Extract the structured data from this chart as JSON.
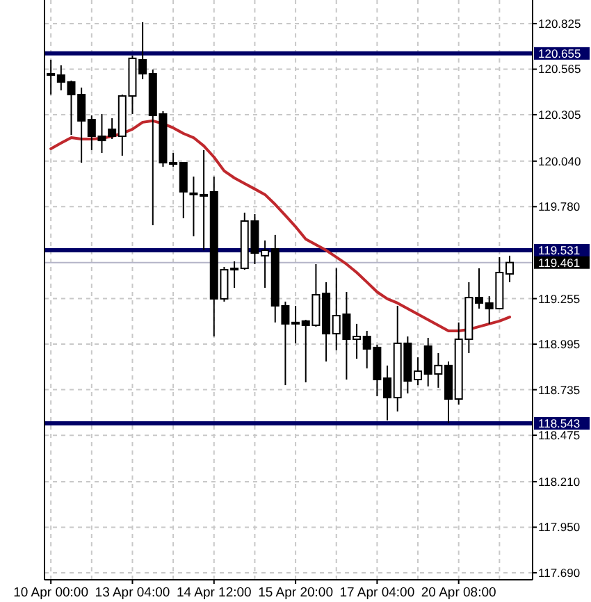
{
  "chart_data": {
    "type": "candlestick",
    "categories": [
      "10 Apr 00:00",
      null,
      null,
      null,
      null,
      null,
      null,
      null,
      "13 Apr 04:00",
      null,
      null,
      null,
      null,
      null,
      null,
      null,
      "14 Apr 12:00",
      null,
      null,
      null,
      null,
      null,
      null,
      null,
      "15 Apr 20:00",
      null,
      null,
      null,
      null,
      null,
      null,
      null,
      "17 Apr 04:00",
      null,
      null,
      null,
      null,
      null,
      null,
      null,
      "20 Apr 08:00",
      null,
      null,
      null,
      null,
      null
    ],
    "ohlc": [
      [
        120.539,
        120.619,
        120.42,
        120.535
      ],
      [
        120.531,
        120.587,
        120.444,
        120.492
      ],
      [
        120.492,
        120.5,
        120.19,
        120.42
      ],
      [
        120.42,
        120.46,
        120.031,
        120.27
      ],
      [
        120.277,
        120.301,
        120.103,
        120.182
      ],
      [
        120.182,
        120.309,
        120.087,
        120.158
      ],
      [
        120.222,
        120.285,
        120.166,
        120.182
      ],
      [
        120.182,
        120.42,
        120.071,
        120.412
      ],
      [
        120.412,
        120.643,
        120.309,
        120.627
      ],
      [
        120.619,
        120.833,
        120.508,
        120.539
      ],
      [
        120.539,
        120.563,
        119.674,
        120.301
      ],
      [
        120.309,
        120.325,
        120.008,
        120.031
      ],
      [
        120.031,
        120.087,
        120.008,
        120.025
      ],
      [
        120.031,
        120.031,
        119.714,
        119.865
      ],
      [
        119.857,
        119.952,
        119.611,
        119.85
      ],
      [
        119.849,
        120.103,
        119.531,
        119.845
      ],
      [
        119.865,
        119.952,
        119.039,
        119.254
      ],
      [
        119.254,
        119.436,
        119.238,
        119.42
      ],
      [
        119.428,
        119.468,
        119.317,
        119.425
      ],
      [
        119.428,
        119.746,
        119.42,
        119.698
      ],
      [
        119.698,
        119.738,
        119.452,
        119.515
      ],
      [
        119.5,
        119.587,
        119.317,
        119.531
      ],
      [
        119.539,
        119.619,
        119.119,
        119.214
      ],
      [
        119.214,
        119.238,
        118.761,
        119.111
      ],
      [
        119.119,
        119.214,
        119.0,
        119.115
      ],
      [
        119.127,
        119.134,
        118.777,
        119.103
      ],
      [
        119.103,
        119.452,
        119.095,
        119.277
      ],
      [
        119.285,
        119.349,
        118.896,
        119.055
      ],
      [
        119.055,
        119.428,
        118.96,
        119.158
      ],
      [
        119.166,
        119.293,
        118.793,
        119.023
      ],
      [
        119.023,
        119.111,
        118.912,
        119.039
      ],
      [
        119.039,
        119.071,
        118.857,
        118.968
      ],
      [
        118.976,
        118.992,
        118.698,
        118.793
      ],
      [
        118.801,
        118.873,
        118.56,
        118.69
      ],
      [
        118.69,
        119.214,
        118.611,
        119.0
      ],
      [
        119.0,
        119.039,
        118.714,
        118.785
      ],
      [
        118.793,
        118.92,
        118.761,
        118.841
      ],
      [
        118.984,
        119.031,
        118.754,
        118.825
      ],
      [
        118.825,
        118.944,
        118.746,
        118.873
      ],
      [
        118.873,
        118.896,
        118.545,
        118.682
      ],
      [
        118.682,
        119.119,
        118.65,
        119.023
      ],
      [
        119.023,
        119.349,
        118.944,
        119.261
      ],
      [
        119.261,
        119.428,
        119.198,
        119.23
      ],
      [
        119.23,
        119.269,
        119.111,
        119.198
      ],
      [
        119.198,
        119.492,
        119.198,
        119.404
      ],
      [
        119.396,
        119.5,
        119.349,
        119.461
      ]
    ],
    "series": [
      {
        "type": "line",
        "color": "#c0282d",
        "values": [
          120.111,
          120.143,
          120.174,
          120.166,
          120.166,
          120.17,
          120.182,
          120.198,
          120.222,
          120.262,
          120.27,
          120.254,
          120.23,
          120.198,
          120.174,
          120.127,
          120.063,
          119.984,
          119.944,
          119.912,
          119.881,
          119.849,
          119.793,
          119.73,
          119.666,
          119.595,
          119.563,
          119.531,
          119.492,
          119.452,
          119.404,
          119.349,
          119.293,
          119.254,
          119.23,
          119.198,
          119.166,
          119.134,
          119.103,
          119.071,
          119.071,
          119.079,
          119.095,
          119.111,
          119.127,
          119.15
        ]
      }
    ],
    "ylim": [
      117.65,
      120.96
    ],
    "yticks": [
      120.825,
      120.565,
      120.305,
      {
        "value": 120.04,
        "label": "120.040"
      },
      {
        "value": 119.78,
        "label": "119.780"
      },
      119.255,
      118.995,
      118.735,
      118.475,
      {
        "value": 118.21,
        "label": "118.210"
      },
      {
        "value": 117.95,
        "label": "117.950"
      },
      {
        "value": 117.69,
        "label": "117.690"
      }
    ],
    "ref_lines": [
      {
        "axis": "y",
        "value": 120.655,
        "label": "120.655",
        "color": "#000066"
      },
      {
        "axis": "y",
        "value": 119.531,
        "label": "119.531",
        "color": "#000066"
      },
      {
        "axis": "y",
        "value": 118.543,
        "label": "118.543",
        "color": "#000066"
      },
      {
        "axis": "y",
        "value": 119.461,
        "label": "119.461",
        "color": "#b4b4c8"
      }
    ],
    "grid": true,
    "legend": false
  }
}
